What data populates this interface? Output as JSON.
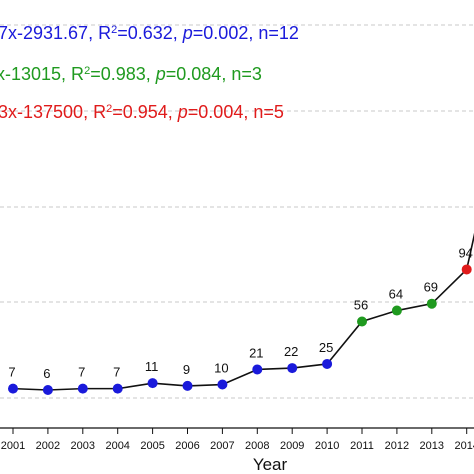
{
  "chart_data": {
    "type": "line",
    "title": "",
    "xlabel": "Year",
    "ylabel": "",
    "grid": "horizontal dashed",
    "x": [
      2001,
      2002,
      2003,
      2004,
      2005,
      2006,
      2007,
      2008,
      2009,
      2010,
      2011,
      2012,
      2013,
      2014
    ],
    "categories": [
      "2001",
      "2002",
      "2003",
      "2004",
      "2005",
      "2006",
      "2007",
      "2008",
      "2009",
      "2010",
      "2011",
      "2012",
      "2013",
      "2014"
    ],
    "values": [
      7,
      6,
      7,
      7,
      11,
      9,
      10,
      21,
      22,
      25,
      56,
      64,
      69,
      94
    ],
    "point_colors": [
      "#1a1adb",
      "#1a1adb",
      "#1a1adb",
      "#1a1adb",
      "#1a1adb",
      "#1a1adb",
      "#1a1adb",
      "#1a1adb",
      "#1a1adb",
      "#1a1adb",
      "#1f9a1f",
      "#1f9a1f",
      "#1f9a1f",
      "#e01b1b"
    ],
    "annotations": [
      {
        "parts": [
          {
            "t": "7x-2931.67, R"
          },
          {
            "t": "2",
            "sup": true
          },
          {
            "t": "=0.632, "
          },
          {
            "t": "p",
            "i": true
          },
          {
            "t": "=0.002, n=12"
          }
        ],
        "color": "#1a1adb"
      },
      {
        "parts": [
          {
            "t": "x-13015, R"
          },
          {
            "t": "2",
            "sup": true
          },
          {
            "t": "=0.983, "
          },
          {
            "t": "p",
            "i": true
          },
          {
            "t": "=0.084, n=3"
          }
        ],
        "color": "#1f9a1f"
      },
      {
        "parts": [
          {
            "t": "3x-137500, R"
          },
          {
            "t": "2",
            "sup": true
          },
          {
            "t": "=0.954, "
          },
          {
            "t": "p",
            "i": true
          },
          {
            "t": "=0.004, n=5"
          }
        ],
        "color": "#e01b1b"
      }
    ],
    "colors": {
      "line": "#111111",
      "grid": "#c8c8c8",
      "axis": "#111111"
    }
  }
}
